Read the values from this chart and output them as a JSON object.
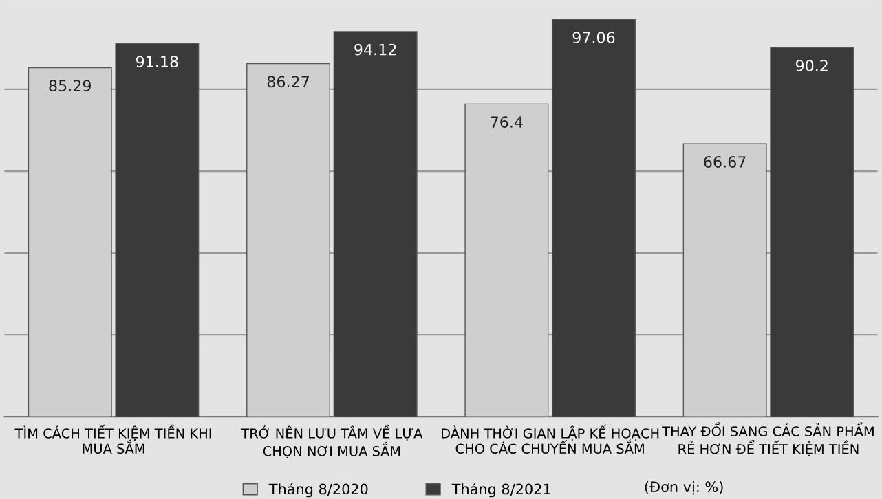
{
  "chart_data": {
    "type": "bar",
    "categories": [
      "TÌM CÁCH TIẾT KIỆM TIỀN KHI\nMUA SẮM",
      "TRỞ NÊN LƯU TÂM VỀ LỰA\nCHỌN NƠI MUA SẮM",
      "DÀNH THỜI GIAN LẬP KẾ HOẠCH\nCHO CÁC CHUYẾN MUA SẮM",
      "THAY ĐỔI SANG CÁC SẢN PHẨM\nRẺ HƠN ĐỂ TIẾT KIỆM TIỀN"
    ],
    "series": [
      {
        "name": "Tháng 8/2020",
        "color": "#cfcfcf",
        "values": [
          85.29,
          86.27,
          76.4,
          66.67
        ]
      },
      {
        "name": "Tháng 8/2021",
        "color": "#3a3a3a",
        "values": [
          91.18,
          94.12,
          97.06,
          90.2
        ]
      }
    ],
    "ylim": [
      0,
      100
    ],
    "yticks": [
      {
        "value": 0,
        "label": null
      },
      {
        "value": 20,
        "label": null
      },
      {
        "value": 40,
        "label": null
      },
      {
        "value": 60,
        "label": null
      },
      {
        "value": 80,
        "label": null
      },
      {
        "value": 100,
        "label": null
      }
    ],
    "grid": "y",
    "data_labels": true,
    "legend": "bottom",
    "tick_labels": "x",
    "annotations": [
      "(Đơn vị: %)"
    ]
  }
}
